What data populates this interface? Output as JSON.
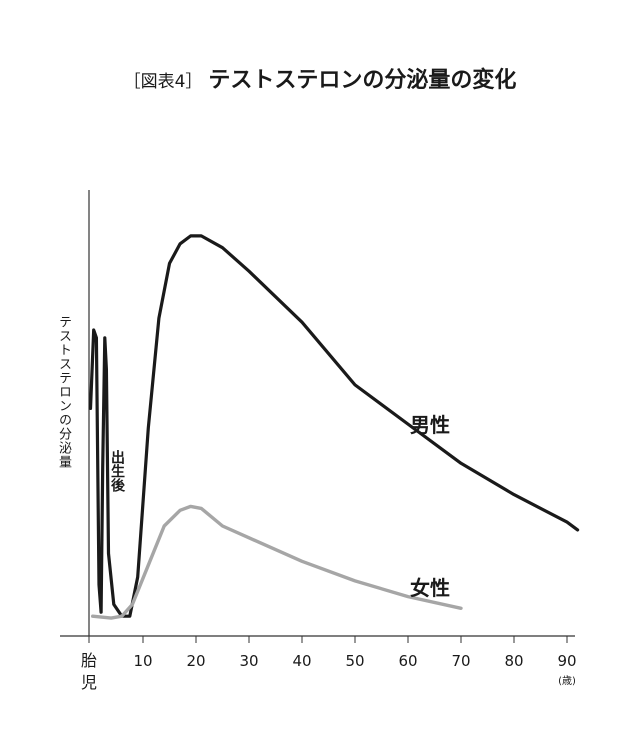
{
  "title": {
    "prefix": "［図表4］",
    "main": "テストステロンの分泌量の変化"
  },
  "chart_data": {
    "type": "line",
    "title": "テストステロンの分泌量の変化",
    "ylabel": "テストステロンの分泌量",
    "xlabel": "",
    "x_unit": "(歳)",
    "x_ticks": [
      {
        "label": "胎\n児",
        "value": -5
      },
      {
        "label": "10",
        "value": 10
      },
      {
        "label": "20",
        "value": 20
      },
      {
        "label": "30",
        "value": 30
      },
      {
        "label": "40",
        "value": 40
      },
      {
        "label": "50",
        "value": 50
      },
      {
        "label": "60",
        "value": 60
      },
      {
        "label": "70",
        "value": 70
      },
      {
        "label": "80",
        "value": 80
      },
      {
        "label": "90",
        "value": 90
      }
    ],
    "xlim": [
      -5,
      92
    ],
    "ylim": [
      0,
      100
    ],
    "grid": false,
    "annotation": "出生後",
    "series": [
      {
        "name": "男性",
        "color": "#1a1a1a",
        "points": [
          [
            0.1,
            55
          ],
          [
            0.7,
            75
          ],
          [
            1.2,
            73
          ],
          [
            1.7,
            10
          ],
          [
            2.1,
            3
          ],
          [
            2.4,
            40
          ],
          [
            2.8,
            73
          ],
          [
            3.1,
            65
          ],
          [
            3.5,
            18
          ],
          [
            4.5,
            5
          ],
          [
            6,
            2
          ],
          [
            7.5,
            2
          ],
          [
            9,
            12
          ],
          [
            11,
            50
          ],
          [
            13,
            78
          ],
          [
            15,
            92
          ],
          [
            17,
            97
          ],
          [
            19,
            99
          ],
          [
            21,
            99
          ],
          [
            25,
            96
          ],
          [
            30,
            90
          ],
          [
            40,
            77
          ],
          [
            50,
            61
          ],
          [
            60,
            51
          ],
          [
            70,
            41
          ],
          [
            80,
            33
          ],
          [
            90,
            26
          ],
          [
            92,
            24
          ]
        ]
      },
      {
        "name": "女性",
        "color": "#a6a6a6",
        "points": [
          [
            0.5,
            2
          ],
          [
            4,
            1.5
          ],
          [
            6,
            2
          ],
          [
            8,
            5
          ],
          [
            11,
            15
          ],
          [
            14,
            25
          ],
          [
            17,
            29
          ],
          [
            19,
            30
          ],
          [
            21,
            29.5
          ],
          [
            25,
            25
          ],
          [
            30,
            22
          ],
          [
            40,
            16
          ],
          [
            50,
            11
          ],
          [
            60,
            7
          ],
          [
            70,
            4
          ]
        ]
      }
    ]
  }
}
